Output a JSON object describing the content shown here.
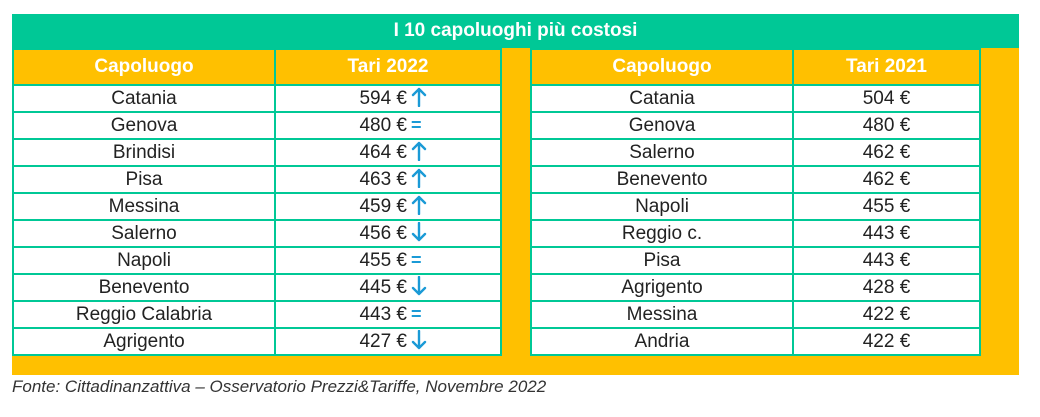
{
  "title": "I 10 capoluoghi più costosi",
  "colors": {
    "accent_green": "#00c896",
    "header_gold": "#ffc000",
    "arrow_blue": "#1a9ad6"
  },
  "left_table": {
    "headers": [
      "Capoluogo",
      "Tari 2022"
    ],
    "rows": [
      {
        "city": "Catania",
        "value": "594 €",
        "trend": "up"
      },
      {
        "city": "Genova",
        "value": "480 €",
        "trend": "equal"
      },
      {
        "city": "Brindisi",
        "value": "464 €",
        "trend": "up"
      },
      {
        "city": "Pisa",
        "value": "463 €",
        "trend": "up"
      },
      {
        "city": "Messina",
        "value": "459 €",
        "trend": "up"
      },
      {
        "city": "Salerno",
        "value": "456 €",
        "trend": "down"
      },
      {
        "city": "Napoli",
        "value": "455 €",
        "trend": "equal"
      },
      {
        "city": "Benevento",
        "value": "445 €",
        "trend": "down"
      },
      {
        "city": "Reggio Calabria",
        "value": "443 €",
        "trend": "equal"
      },
      {
        "city": "Agrigento",
        "value": "427 €",
        "trend": "down"
      }
    ]
  },
  "right_table": {
    "headers": [
      "Capoluogo",
      "Tari 2021"
    ],
    "rows": [
      {
        "city": "Catania",
        "value": "504 €"
      },
      {
        "city": "Genova",
        "value": "480 €"
      },
      {
        "city": "Salerno",
        "value": "462 €"
      },
      {
        "city": "Benevento",
        "value": "462 €"
      },
      {
        "city": "Napoli",
        "value": "455 €"
      },
      {
        "city": "Reggio c.",
        "value": "443 €"
      },
      {
        "city": "Pisa",
        "value": "443 €"
      },
      {
        "city": "Agrigento",
        "value": "428 €"
      },
      {
        "city": "Messina",
        "value": "422 €"
      },
      {
        "city": "Andria",
        "value": "422 €"
      }
    ]
  },
  "source": "Fonte: Cittadinanzattiva – Osservatorio Prezzi&Tariffe, Novembre 2022"
}
